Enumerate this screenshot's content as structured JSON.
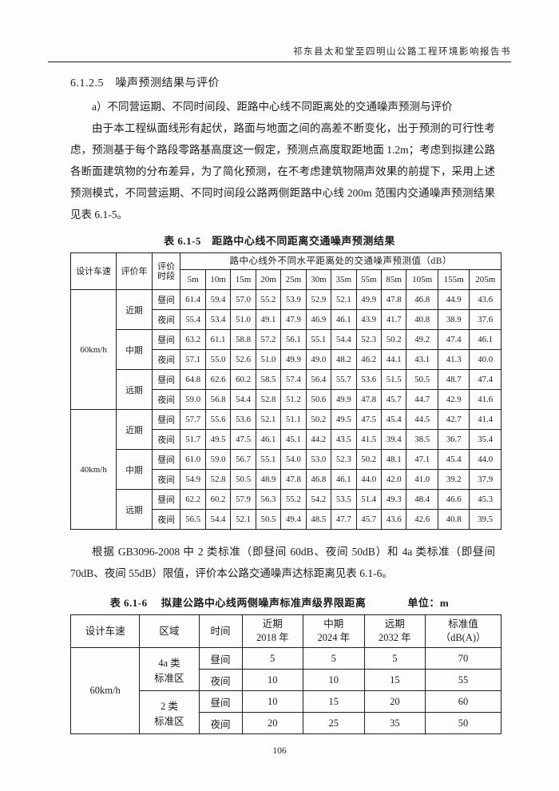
{
  "header": {
    "title": "祁东县太和堂至四明山公路工程环境影响报告书"
  },
  "content": {
    "section_heading": "6.1.2.5　噪声预测结果与评价",
    "item_a": "a）不同营运期、不同时间段、距路中心线不同距离处的交通噪声预测与评价",
    "paragraph1": "由于本工程纵面线形有起伏，路面与地面之间的高差不断变化，出于预测的可行性考虑，预测基于每个路段零路基高度这一假定，预测点高度取距地面 1.2m；考虑到拟建公路各断面建筑物的分布差异，为了简化预测，在不考虑建筑物隔声效果的前提下，采用上述预测模式，不同营运期、不同时间段公路两侧距路中心线 200m 范围内交通噪声预测结果见表 6.1-5。",
    "paragraph2": "根据 GB3096-2008 中 2 类标准（即昼间 60dB、夜间 50dB）和 4a 类标准（即昼间 70dB、夜间 55dB）限值，评价本公路交通噪声达标距离见表 6.1-6。"
  },
  "table1": {
    "title": "表 6.1-5　距路中心线不同距离交通噪声预测结果",
    "corner_headers": [
      "设计车速",
      "评价年",
      [
        "评价",
        "时段"
      ]
    ],
    "span_header": "路中心线外不同水平距离处的交通噪声预测值（dB）",
    "distance_headers": [
      "5m",
      "10m",
      "15m",
      "20m",
      "25m",
      "30m",
      "35m",
      "55m",
      "85m",
      "105m",
      "155m",
      "205m"
    ],
    "groups": [
      {
        "speed": "60km/h",
        "periods": [
          {
            "year": "近期",
            "rows": [
              {
                "time": "昼间",
                "values": [
                  "61.4",
                  "59.4",
                  "57.0",
                  "55.2",
                  "53.9",
                  "52.9",
                  "52.1",
                  "49.9",
                  "47.8",
                  "46.8",
                  "44.9",
                  "43.6"
                ]
              },
              {
                "time": "夜间",
                "values": [
                  "55.4",
                  "53.4",
                  "51.0",
                  "49.1",
                  "47.9",
                  "46.9",
                  "46.1",
                  "43.9",
                  "41.7",
                  "40.8",
                  "38.9",
                  "37.6"
                ]
              }
            ]
          },
          {
            "year": "中期",
            "rows": [
              {
                "time": "昼间",
                "values": [
                  "63.2",
                  "61.1",
                  "58.8",
                  "57.2",
                  "56.1",
                  "55.1",
                  "54.4",
                  "52.3",
                  "50.2",
                  "49.2",
                  "47.4",
                  "46.1"
                ]
              },
              {
                "time": "夜间",
                "values": [
                  "57.1",
                  "55.0",
                  "52.6",
                  "51.0",
                  "49.9",
                  "49.0",
                  "48.2",
                  "46.2",
                  "44.1",
                  "43.1",
                  "41.3",
                  "40.0"
                ]
              }
            ]
          },
          {
            "year": "远期",
            "rows": [
              {
                "time": "昼间",
                "values": [
                  "64.8",
                  "62.6",
                  "60.2",
                  "58.5",
                  "57.4",
                  "56.4",
                  "55.7",
                  "53.6",
                  "51.5",
                  "50.5",
                  "48.7",
                  "47.4"
                ]
              },
              {
                "time": "夜间",
                "values": [
                  "59.0",
                  "56.8",
                  "54.4",
                  "52.8",
                  "51.2",
                  "50.6",
                  "49.9",
                  "47.8",
                  "45.7",
                  "44.7",
                  "42.9",
                  "41.6"
                ]
              }
            ]
          }
        ]
      },
      {
        "speed": "40km/h",
        "periods": [
          {
            "year": "近期",
            "rows": [
              {
                "time": "昼间",
                "values": [
                  "57.7",
                  "55.6",
                  "53.6",
                  "52.1",
                  "51.1",
                  "50.2",
                  "49.5",
                  "47.5",
                  "45.4",
                  "44.5",
                  "42.7",
                  "41.4"
                ]
              },
              {
                "time": "夜间",
                "values": [
                  "51.7",
                  "49.5",
                  "47.5",
                  "46.1",
                  "45.1",
                  "44.2",
                  "43.5",
                  "41.5",
                  "39.4",
                  "38.5",
                  "36.7",
                  "35.4"
                ]
              }
            ]
          },
          {
            "year": "中期",
            "rows": [
              {
                "time": "昼间",
                "values": [
                  "61.0",
                  "59.0",
                  "56.7",
                  "55.1",
                  "54.0",
                  "53.0",
                  "52.3",
                  "50.2",
                  "48.1",
                  "47.1",
                  "45.4",
                  "44.0"
                ]
              },
              {
                "time": "夜间",
                "values": [
                  "54.9",
                  "52.8",
                  "50.5",
                  "48.9",
                  "47.8",
                  "46.8",
                  "46.1",
                  "44.0",
                  "42.0",
                  "41.0",
                  "39.2",
                  "37.9"
                ]
              }
            ]
          },
          {
            "year": "远期",
            "rows": [
              {
                "time": "昼间",
                "values": [
                  "62.2",
                  "60.2",
                  "57.9",
                  "56.3",
                  "55.2",
                  "54.2",
                  "53.5",
                  "51.4",
                  "49.3",
                  "48.4",
                  "46.6",
                  "45.3"
                ]
              },
              {
                "time": "夜间",
                "values": [
                  "56.5",
                  "54.4",
                  "52.1",
                  "50.5",
                  "49.4",
                  "48.5",
                  "47.7",
                  "45.7",
                  "43.6",
                  "42.6",
                  "40.8",
                  "39.5"
                ]
              }
            ]
          }
        ]
      }
    ]
  },
  "table2": {
    "title": "表 6.1-6　 拟建公路中心线两侧噪声标准声级界限距离",
    "unit_label": "单位：m",
    "headers": [
      "设计车速",
      "区域",
      "时间",
      [
        "近期",
        "2018 年"
      ],
      [
        "中期",
        "2024 年"
      ],
      [
        "远期",
        "2032 年"
      ],
      [
        "标准值",
        "（dB(A)）"
      ]
    ],
    "speed": "60km/h",
    "zones": [
      {
        "zone": [
          "4a 类",
          "标准区"
        ],
        "rows": [
          {
            "time": "昼间",
            "values": [
              "5",
              "5",
              "5",
              "70"
            ]
          },
          {
            "time": "夜间",
            "values": [
              "10",
              "10",
              "15",
              "55"
            ]
          }
        ]
      },
      {
        "zone": [
          "2 类",
          "标准区"
        ],
        "rows": [
          {
            "time": "昼间",
            "values": [
              "10",
              "15",
              "20",
              "60"
            ]
          },
          {
            "time": "夜间",
            "values": [
              "20",
              "25",
              "35",
              "50"
            ]
          }
        ]
      }
    ]
  },
  "footer": {
    "page_number": "106"
  }
}
